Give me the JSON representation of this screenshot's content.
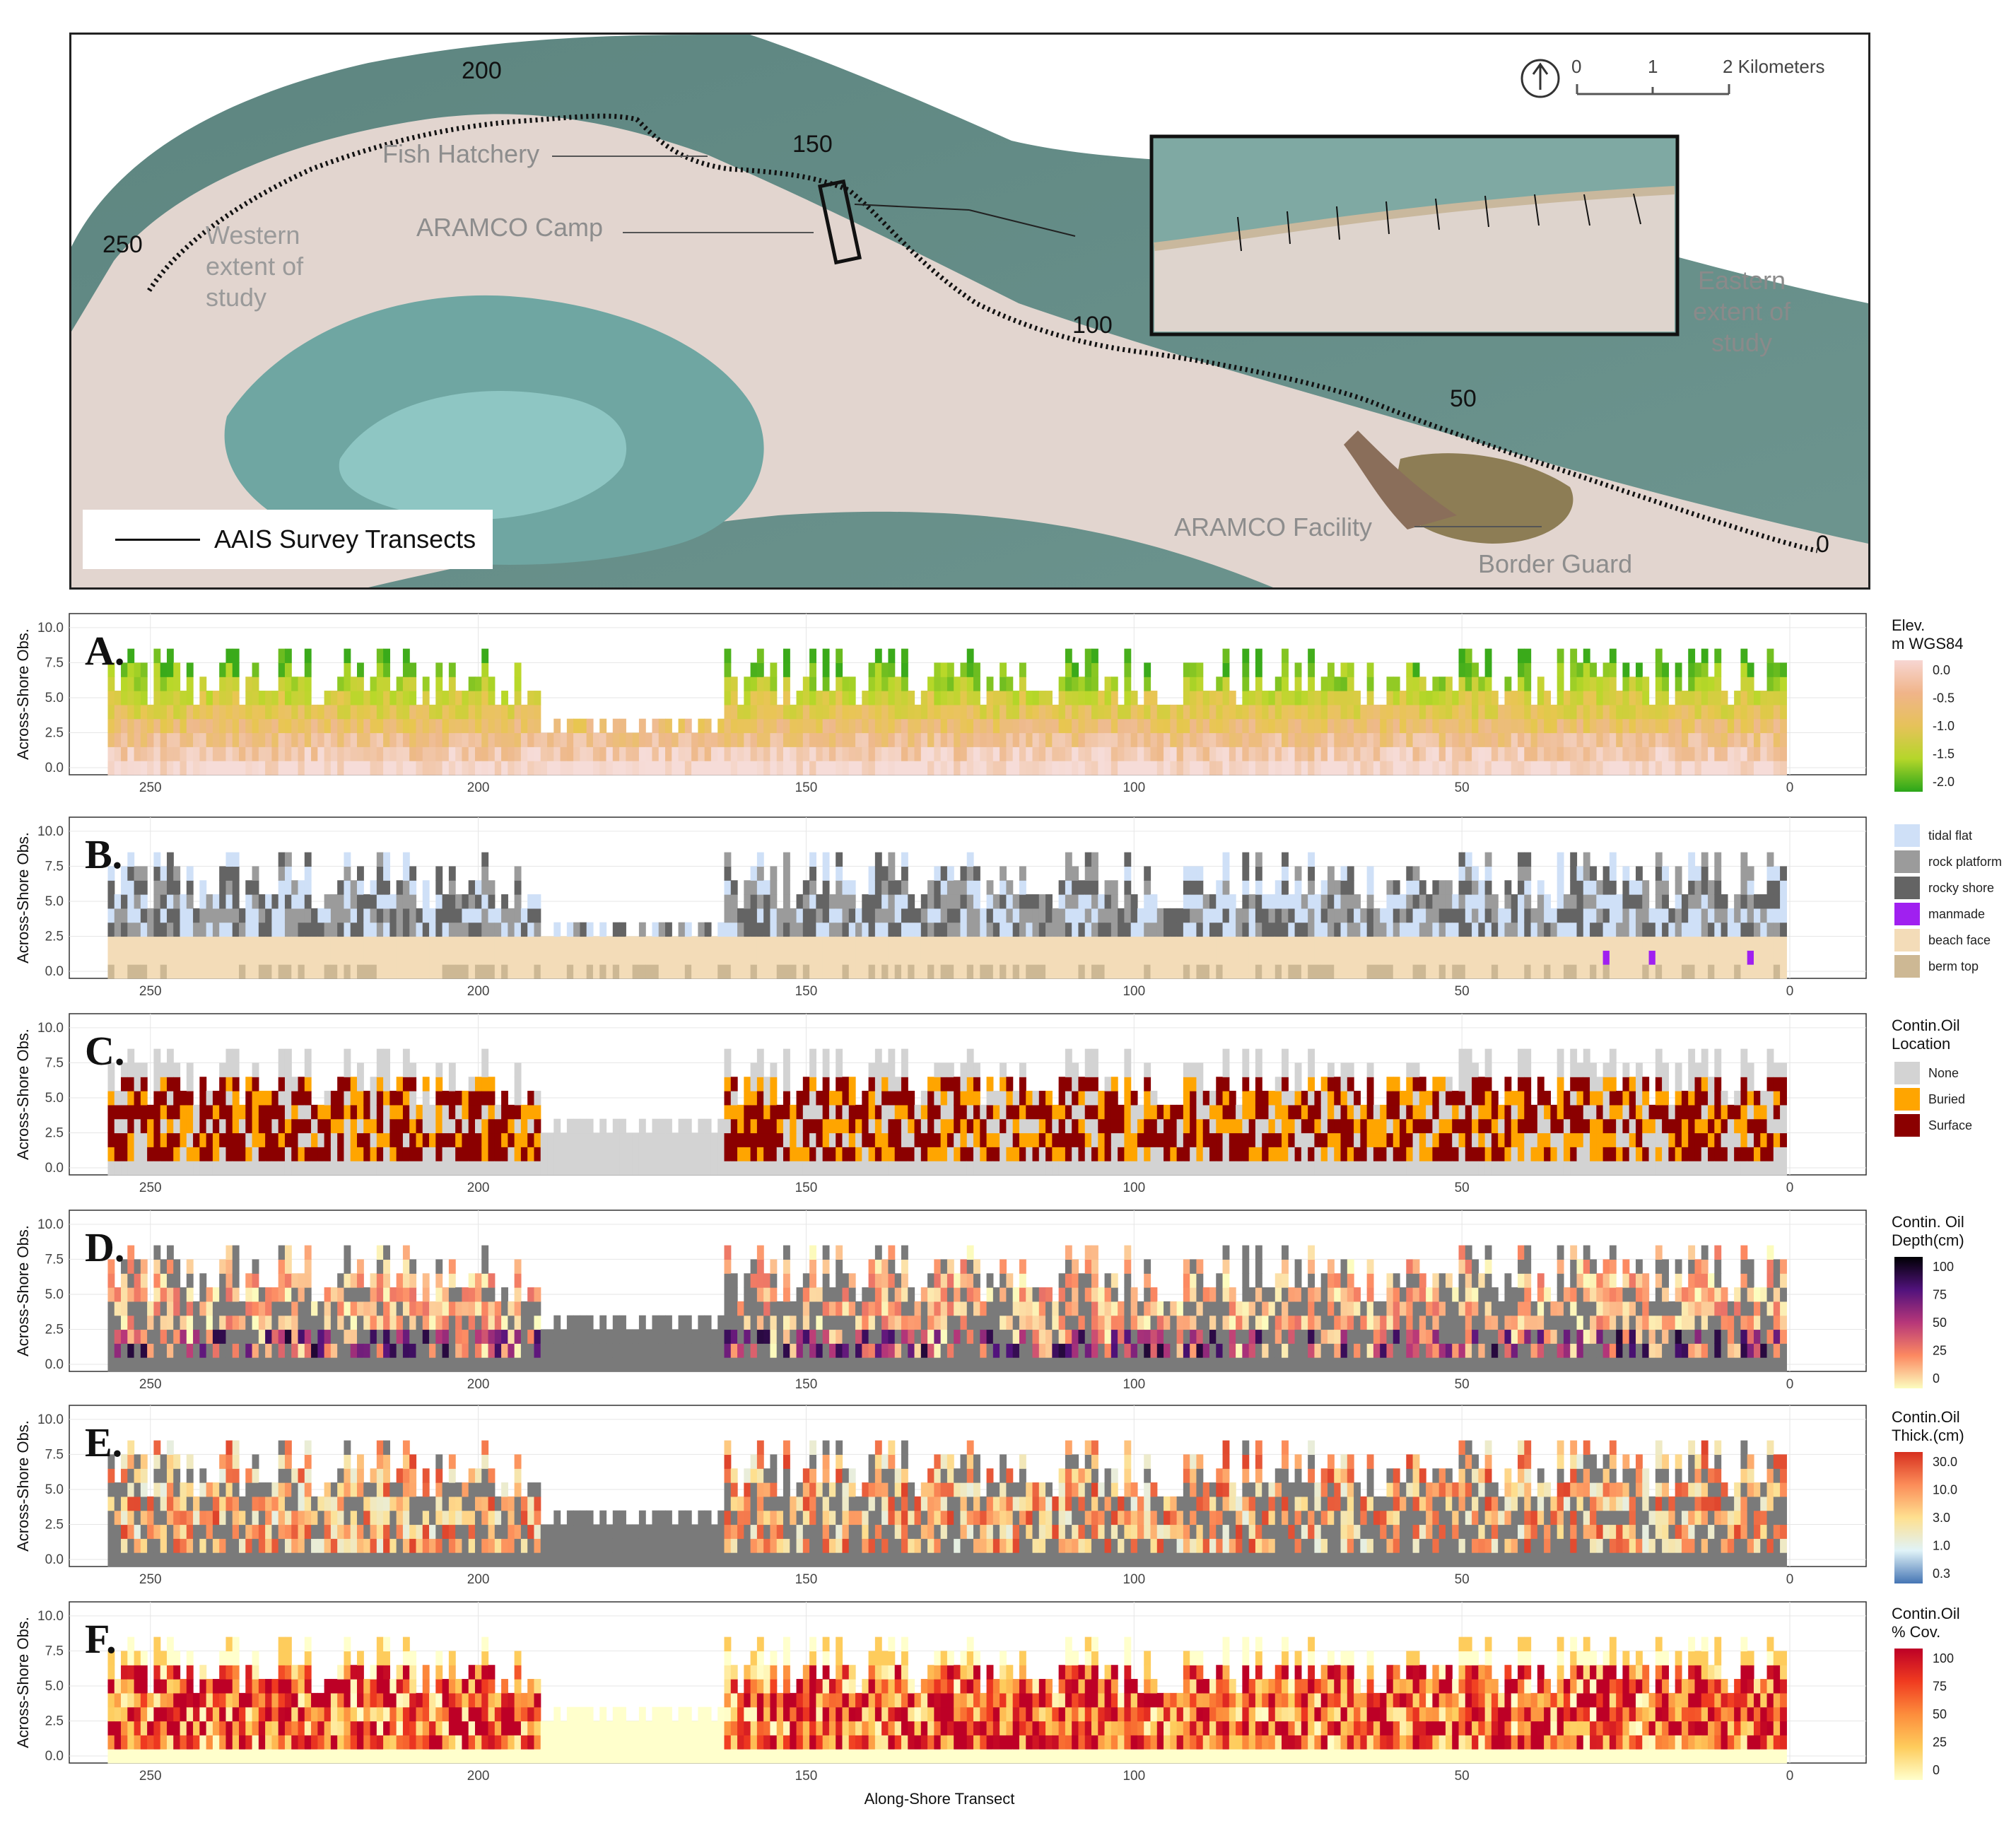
{
  "map": {
    "legend_label": "AAIS Survey Transects",
    "scale": {
      "labels": [
        "0",
        "1",
        "2 Kilometers"
      ]
    },
    "north_arrow_icon": "north-arrow-icon",
    "transect_labels": [
      "200",
      "150",
      "250",
      "100",
      "50",
      "0"
    ],
    "place_labels": {
      "fish_hatchery": "Fish Hatchery",
      "aramco_camp": "ARAMCO Camp",
      "western_extent": [
        "Western",
        "extent of",
        "study"
      ],
      "eastern_extent": [
        "Eastern",
        "extent of",
        "study"
      ],
      "aramco_facility": "ARAMCO Facility",
      "border_guard": "Border Guard"
    },
    "colors": {
      "sea": "#5f8f8a",
      "shallow": "#8fc5c6",
      "land": "#e3d6d0",
      "transect": "#111111"
    }
  },
  "chart_data": [
    {
      "type": "heatmap",
      "letter": "A.",
      "xlabel": "",
      "ylabel": "Across-Shore Obs.",
      "xlim": [
        260,
        0
      ],
      "ylim": [
        0,
        10.5
      ],
      "x_ticks": [
        "250",
        "200",
        "150",
        "100",
        "50",
        "0"
      ],
      "y_ticks": [
        "0.0",
        "2.5",
        "5.0",
        "7.5",
        "10.0"
      ],
      "variable": "elevation",
      "legend": {
        "title": [
          "Elev.",
          "m WGS84"
        ],
        "kind": "gradient",
        "labels": [
          "0.0",
          "-0.5",
          "-1.0",
          "-1.5",
          "-2.0"
        ],
        "colors": [
          "#f7d6d2",
          "#f0b489",
          "#e6c25a",
          "#b5d62a",
          "#2aa61a"
        ]
      }
    },
    {
      "type": "heatmap",
      "letter": "B.",
      "xlabel": "",
      "ylabel": "Across-Shore Obs.",
      "xlim": [
        260,
        0
      ],
      "ylim": [
        0,
        10.5
      ],
      "x_ticks": [
        "250",
        "200",
        "150",
        "100",
        "50",
        "0"
      ],
      "y_ticks": [
        "0.0",
        "2.5",
        "5.0",
        "7.5",
        "10.0"
      ],
      "variable": "substrate",
      "legend": {
        "title": [],
        "kind": "categorical",
        "labels": [
          "tidal flat",
          "rock platform",
          "rocky shore",
          "manmade",
          "beach face",
          "berm top"
        ],
        "colors": [
          "#cfe0f7",
          "#9b9b9b",
          "#646464",
          "#a020f0",
          "#f3dcb8",
          "#cdb894"
        ]
      }
    },
    {
      "type": "heatmap",
      "letter": "C.",
      "xlabel": "",
      "ylabel": "Across-Shore Obs.",
      "xlim": [
        260,
        0
      ],
      "ylim": [
        0,
        10.5
      ],
      "x_ticks": [
        "250",
        "200",
        "150",
        "100",
        "50",
        "0"
      ],
      "y_ticks": [
        "0.0",
        "2.5",
        "5.0",
        "7.5",
        "10.0"
      ],
      "variable": "oil_location",
      "legend": {
        "title": [
          "Contin.Oil",
          "Location"
        ],
        "kind": "categorical",
        "labels": [
          "None",
          "Buried",
          "Surface"
        ],
        "colors": [
          "#d3d3d3",
          "#ffa500",
          "#8b0000"
        ]
      }
    },
    {
      "type": "heatmap",
      "letter": "D.",
      "xlabel": "",
      "ylabel": "Across-Shore Obs.",
      "xlim": [
        260,
        0
      ],
      "ylim": [
        0,
        10.5
      ],
      "x_ticks": [
        "250",
        "200",
        "150",
        "100",
        "50",
        "0"
      ],
      "y_ticks": [
        "0.0",
        "2.5",
        "5.0",
        "7.5",
        "10.0"
      ],
      "variable": "oil_depth",
      "legend": {
        "title": [
          "Contin. Oil",
          "Depth(cm)"
        ],
        "kind": "gradient",
        "labels": [
          "100",
          "75",
          "50",
          "25",
          "0"
        ],
        "colors": [
          "#000004",
          "#51127c",
          "#b73779",
          "#fc8961",
          "#fcfdbf"
        ]
      }
    },
    {
      "type": "heatmap",
      "letter": "E.",
      "xlabel": "",
      "ylabel": "Across-Shore Obs.",
      "xlim": [
        260,
        0
      ],
      "ylim": [
        0,
        10.5
      ],
      "x_ticks": [
        "250",
        "200",
        "150",
        "100",
        "50",
        "0"
      ],
      "y_ticks": [
        "0.0",
        "2.5",
        "5.0",
        "7.5",
        "10.0"
      ],
      "variable": "oil_thickness",
      "legend": {
        "title": [
          "Contin.Oil",
          "Thick.(cm)"
        ],
        "kind": "gradient",
        "labels": [
          "30.0",
          "10.0",
          "3.0",
          "1.0",
          "0.3"
        ],
        "colors": [
          "#d7301f",
          "#fc8d59",
          "#fee090",
          "#e0f3f8",
          "#4575b4"
        ]
      }
    },
    {
      "type": "heatmap",
      "letter": "F.",
      "xlabel": "Along-Shore Transect",
      "ylabel": "Across-Shore Obs.",
      "xlim": [
        260,
        0
      ],
      "ylim": [
        0,
        10.5
      ],
      "x_ticks": [
        "250",
        "200",
        "150",
        "100",
        "50",
        "0"
      ],
      "y_ticks": [
        "0.0",
        "2.5",
        "5.0",
        "7.5",
        "10.0"
      ],
      "variable": "oil_cover",
      "legend": {
        "title": [
          "Contin.Oil",
          "% Cov."
        ],
        "kind": "gradient",
        "labels": [
          "100",
          "75",
          "50",
          "25",
          "0"
        ],
        "colors": [
          "#bd0026",
          "#f03b20",
          "#fd8d3c",
          "#fecc5c",
          "#ffffcc"
        ]
      }
    }
  ]
}
